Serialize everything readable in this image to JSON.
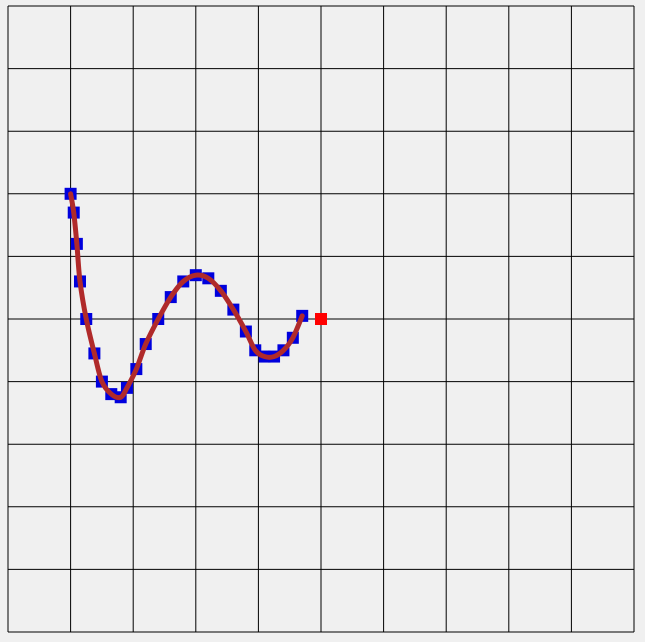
{
  "chart_data": {
    "type": "scatter",
    "title": "",
    "xlabel": "",
    "ylabel": "",
    "grid": true,
    "grid_cells": [
      10,
      10
    ],
    "xlim": [
      0,
      10
    ],
    "ylim": [
      0,
      10
    ],
    "colors": {
      "background": "#f0f0f0",
      "grid": "#000000",
      "marker": "#0000dd",
      "curve": "#b02a2a",
      "endpoint": "#ff0000"
    },
    "series": [
      {
        "type": "scatter",
        "marker": "square",
        "x": [
          1.0,
          1.05,
          1.1,
          1.15,
          1.25,
          1.38,
          1.5,
          1.65,
          1.8,
          1.9,
          2.05,
          2.2,
          2.4,
          2.6,
          2.8,
          3.0,
          3.2,
          3.4,
          3.6,
          3.8,
          3.95,
          4.1,
          4.25,
          4.4,
          4.55,
          4.7
        ],
        "y": [
          7.0,
          6.7,
          6.2,
          5.6,
          5.0,
          4.45,
          4.0,
          3.8,
          3.75,
          3.9,
          4.2,
          4.6,
          5.0,
          5.35,
          5.6,
          5.7,
          5.65,
          5.45,
          5.15,
          4.8,
          4.5,
          4.4,
          4.4,
          4.5,
          4.7,
          5.05
        ]
      },
      {
        "type": "line",
        "x": [
          1.0,
          1.05,
          1.1,
          1.15,
          1.25,
          1.38,
          1.5,
          1.65,
          1.8,
          1.9,
          2.05,
          2.2,
          2.4,
          2.6,
          2.8,
          3.0,
          3.2,
          3.4,
          3.6,
          3.8,
          3.95,
          4.1,
          4.25,
          4.4,
          4.55,
          4.7
        ],
        "y": [
          7.0,
          6.7,
          6.2,
          5.6,
          5.0,
          4.45,
          4.0,
          3.8,
          3.75,
          3.9,
          4.2,
          4.6,
          5.0,
          5.35,
          5.6,
          5.7,
          5.65,
          5.45,
          5.15,
          4.8,
          4.5,
          4.4,
          4.4,
          4.5,
          4.7,
          5.05
        ]
      },
      {
        "type": "scatter",
        "marker": "square",
        "x": [
          5.0
        ],
        "y": [
          5.0
        ]
      }
    ]
  }
}
